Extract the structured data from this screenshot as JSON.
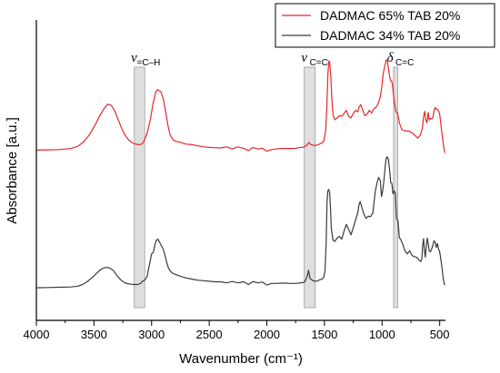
{
  "chart_data": {
    "type": "line",
    "xlabel": "Wavenumber (cm⁻¹)",
    "ylabel": "Absorbance [a.u.]",
    "xlim": [
      4000,
      450
    ],
    "x_reversed": true,
    "ylim": [
      0,
      100
    ],
    "x_ticks": [
      "4000",
      "3500",
      "3000",
      "2500",
      "2000",
      "1500",
      "1000",
      "500"
    ],
    "grid": false,
    "legend_position": "top-right",
    "legend": [
      {
        "label": "DADMAC 65% TAB 20%",
        "color": "#e8262b"
      },
      {
        "label": "DADMAC 34% TAB 20%",
        "color": "#3a3a3a"
      }
    ],
    "bands": [
      {
        "from": 3150,
        "to": 3060,
        "main": "ν",
        "sub": "=C–H"
      },
      {
        "from": 1675,
        "to": 1580,
        "main": "ν",
        "sub": "C=C"
      },
      {
        "from": 900,
        "to": 865,
        "main": "δ",
        "sub": "C=C"
      }
    ],
    "series": [
      {
        "name": "DADMAC 65% TAB 20%",
        "color": "#e8262b",
        "points": [
          [
            4000,
            59
          ],
          [
            3900,
            59.1
          ],
          [
            3800,
            59.2
          ],
          [
            3700,
            59.6
          ],
          [
            3640,
            60.4
          ],
          [
            3590,
            62
          ],
          [
            3540,
            64.6
          ],
          [
            3490,
            68.2
          ],
          [
            3450,
            71.6
          ],
          [
            3410,
            74.4
          ],
          [
            3380,
            75.8
          ],
          [
            3350,
            75.4
          ],
          [
            3320,
            73.4
          ],
          [
            3290,
            70.2
          ],
          [
            3260,
            67
          ],
          [
            3230,
            64.4
          ],
          [
            3200,
            62.8
          ],
          [
            3170,
            61.8
          ],
          [
            3140,
            61.2
          ],
          [
            3110,
            61
          ],
          [
            3085,
            61.2
          ],
          [
            3065,
            62.4
          ],
          [
            3040,
            65
          ],
          [
            3010,
            70.4
          ],
          [
            2985,
            76.6
          ],
          [
            2965,
            80
          ],
          [
            2950,
            81.2
          ],
          [
            2935,
            80.8
          ],
          [
            2920,
            80.4
          ],
          [
            2900,
            78
          ],
          [
            2880,
            73.6
          ],
          [
            2860,
            68.4
          ],
          [
            2840,
            64.6
          ],
          [
            2820,
            63.2
          ],
          [
            2800,
            62.4
          ],
          [
            2750,
            61.8
          ],
          [
            2700,
            61.2
          ],
          [
            2650,
            61
          ],
          [
            2600,
            60.6
          ],
          [
            2550,
            60.2
          ],
          [
            2500,
            60
          ],
          [
            2450,
            59.9
          ],
          [
            2400,
            59.8
          ],
          [
            2350,
            60.2
          ],
          [
            2300,
            59.4
          ],
          [
            2250,
            60.2
          ],
          [
            2200,
            59.6
          ],
          [
            2160,
            58.8
          ],
          [
            2120,
            60
          ],
          [
            2080,
            59.4
          ],
          [
            2040,
            59.7
          ],
          [
            2000,
            58.6
          ],
          [
            1960,
            59.2
          ],
          [
            1920,
            59.4
          ],
          [
            1880,
            59.6
          ],
          [
            1840,
            59.6
          ],
          [
            1800,
            59.6
          ],
          [
            1760,
            59.6
          ],
          [
            1720,
            59.9
          ],
          [
            1680,
            60.1
          ],
          [
            1650,
            60.9
          ],
          [
            1635,
            61.8
          ],
          [
            1620,
            61.1
          ],
          [
            1600,
            60.8
          ],
          [
            1580,
            60.7
          ],
          [
            1560,
            60.9
          ],
          [
            1540,
            61.3
          ],
          [
            1520,
            61.6
          ],
          [
            1505,
            62.5
          ],
          [
            1490,
            66
          ],
          [
            1480,
            74
          ],
          [
            1470,
            87
          ],
          [
            1462,
            91.6
          ],
          [
            1455,
            91.2
          ],
          [
            1445,
            86
          ],
          [
            1435,
            77
          ],
          [
            1425,
            71.8
          ],
          [
            1410,
            70.2
          ],
          [
            1390,
            70.8
          ],
          [
            1370,
            71.6
          ],
          [
            1350,
            71.4
          ],
          [
            1330,
            72.4
          ],
          [
            1310,
            73.6
          ],
          [
            1290,
            71.4
          ],
          [
            1270,
            70.8
          ],
          [
            1250,
            72.4
          ],
          [
            1230,
            73.6
          ],
          [
            1210,
            73
          ],
          [
            1200,
            74.8
          ],
          [
            1185,
            75.6
          ],
          [
            1170,
            74
          ],
          [
            1150,
            71.6
          ],
          [
            1130,
            72.2
          ],
          [
            1110,
            73.6
          ],
          [
            1090,
            72.6
          ],
          [
            1070,
            74.2
          ],
          [
            1050,
            74.8
          ],
          [
            1030,
            76.4
          ],
          [
            1015,
            78.6
          ],
          [
            1000,
            83
          ],
          [
            990,
            87
          ],
          [
            975,
            90
          ],
          [
            965,
            92
          ],
          [
            955,
            91.6
          ],
          [
            945,
            89
          ],
          [
            935,
            86
          ],
          [
            925,
            84.4
          ],
          [
            915,
            84.2
          ],
          [
            905,
            81
          ],
          [
            895,
            77
          ],
          [
            880,
            73.2
          ],
          [
            865,
            72.4
          ],
          [
            850,
            69
          ],
          [
            830,
            66.6
          ],
          [
            810,
            66.2
          ],
          [
            790,
            66
          ],
          [
            770,
            66
          ],
          [
            750,
            65.6
          ],
          [
            730,
            65
          ],
          [
            710,
            64.2
          ],
          [
            690,
            63.4
          ],
          [
            670,
            64.4
          ],
          [
            660,
            65.6
          ],
          [
            650,
            67.2
          ],
          [
            640,
            71.2
          ],
          [
            630,
            73.2
          ],
          [
            620,
            70
          ],
          [
            610,
            69
          ],
          [
            600,
            72.8
          ],
          [
            590,
            70
          ],
          [
            580,
            70.6
          ],
          [
            570,
            70.4
          ],
          [
            560,
            70.8
          ],
          [
            550,
            73.2
          ],
          [
            540,
            74.6
          ],
          [
            530,
            74
          ],
          [
            520,
            74
          ],
          [
            510,
            73.4
          ],
          [
            500,
            72.2
          ],
          [
            490,
            68.6
          ],
          [
            480,
            65
          ],
          [
            470,
            61.6
          ],
          [
            460,
            58.8
          ],
          [
            455,
            58
          ]
        ]
      },
      {
        "name": "DADMAC 34% TAB 20%",
        "color": "#3a3a3a",
        "points": [
          [
            4000,
            8.6
          ],
          [
            3900,
            8.7
          ],
          [
            3800,
            8.8
          ],
          [
            3700,
            8.9
          ],
          [
            3640,
            9.2
          ],
          [
            3600,
            9.8
          ],
          [
            3560,
            10.8
          ],
          [
            3520,
            12.2
          ],
          [
            3480,
            13.8
          ],
          [
            3450,
            15
          ],
          [
            3420,
            15.8
          ],
          [
            3390,
            16.1
          ],
          [
            3360,
            15.8
          ],
          [
            3330,
            14.8
          ],
          [
            3300,
            13
          ],
          [
            3270,
            11.6
          ],
          [
            3240,
            10.6
          ],
          [
            3210,
            10.1
          ],
          [
            3180,
            9.9
          ],
          [
            3150,
            9.8
          ],
          [
            3120,
            9.8
          ],
          [
            3095,
            10.2
          ],
          [
            3080,
            11
          ],
          [
            3065,
            11.2
          ],
          [
            3040,
            12.6
          ],
          [
            3020,
            16.8
          ],
          [
            3000,
            21
          ],
          [
            2985,
            21.6
          ],
          [
            2970,
            24.6
          ],
          [
            2958,
            26
          ],
          [
            2945,
            26.4
          ],
          [
            2930,
            25.2
          ],
          [
            2915,
            24
          ],
          [
            2900,
            22.8
          ],
          [
            2885,
            20.8
          ],
          [
            2870,
            18
          ],
          [
            2855,
            16
          ],
          [
            2840,
            14.8
          ],
          [
            2820,
            14
          ],
          [
            2800,
            13.6
          ],
          [
            2750,
            12.8
          ],
          [
            2700,
            12.2
          ],
          [
            2650,
            11.8
          ],
          [
            2600,
            11.4
          ],
          [
            2550,
            11.2
          ],
          [
            2500,
            11
          ],
          [
            2450,
            10.8
          ],
          [
            2400,
            10.8
          ],
          [
            2350,
            10.4
          ],
          [
            2300,
            10.9
          ],
          [
            2250,
            10.4
          ],
          [
            2200,
            10.8
          ],
          [
            2160,
            9.8
          ],
          [
            2120,
            10.9
          ],
          [
            2080,
            10.4
          ],
          [
            2040,
            10.7
          ],
          [
            2000,
            9.6
          ],
          [
            1960,
            10.2
          ],
          [
            1920,
            10.2
          ],
          [
            1880,
            10.3
          ],
          [
            1840,
            10.3
          ],
          [
            1800,
            10.2
          ],
          [
            1760,
            10.2
          ],
          [
            1720,
            10.3
          ],
          [
            1690,
            10.5
          ],
          [
            1670,
            10.8
          ],
          [
            1650,
            12.8
          ],
          [
            1638,
            15
          ],
          [
            1625,
            12
          ],
          [
            1600,
            11.2
          ],
          [
            1580,
            11
          ],
          [
            1560,
            11.1
          ],
          [
            1540,
            11.6
          ],
          [
            1520,
            11.7
          ],
          [
            1505,
            12.6
          ],
          [
            1495,
            15
          ],
          [
            1485,
            25
          ],
          [
            1478,
            40
          ],
          [
            1470,
            44.2
          ],
          [
            1462,
            44.6
          ],
          [
            1455,
            43.4
          ],
          [
            1448,
            38
          ],
          [
            1440,
            30
          ],
          [
            1425,
            26
          ],
          [
            1410,
            25.6
          ],
          [
            1390,
            26.8
          ],
          [
            1370,
            27.4
          ],
          [
            1350,
            26.4
          ],
          [
            1330,
            29.4
          ],
          [
            1310,
            31.8
          ],
          [
            1290,
            30
          ],
          [
            1270,
            28
          ],
          [
            1250,
            30.6
          ],
          [
            1230,
            33.4
          ],
          [
            1210,
            36.2
          ],
          [
            1200,
            39
          ],
          [
            1190,
            40.2
          ],
          [
            1175,
            38
          ],
          [
            1160,
            35.8
          ],
          [
            1140,
            34
          ],
          [
            1120,
            34.8
          ],
          [
            1100,
            34.6
          ],
          [
            1080,
            36
          ],
          [
            1060,
            43.6
          ],
          [
            1045,
            46.8
          ],
          [
            1030,
            49
          ],
          [
            1015,
            47.8
          ],
          [
            1005,
            42
          ],
          [
            995,
            44
          ],
          [
            985,
            47.4
          ],
          [
            975,
            52
          ],
          [
            965,
            56
          ],
          [
            955,
            56.6
          ],
          [
            945,
            55.4
          ],
          [
            935,
            52
          ],
          [
            925,
            47
          ],
          [
            915,
            46.8
          ],
          [
            905,
            43
          ],
          [
            895,
            44
          ],
          [
            885,
            43.2
          ],
          [
            875,
            34
          ],
          [
            862,
            33.2
          ],
          [
            850,
            27
          ],
          [
            835,
            26
          ],
          [
            820,
            24.4
          ],
          [
            800,
            22
          ],
          [
            780,
            21
          ],
          [
            760,
            22.2
          ],
          [
            740,
            20.4
          ],
          [
            720,
            20
          ],
          [
            700,
            19.8
          ],
          [
            680,
            18.8
          ],
          [
            665,
            18.2
          ],
          [
            655,
            19.2
          ],
          [
            648,
            24
          ],
          [
            640,
            26.6
          ],
          [
            632,
            22
          ],
          [
            625,
            19.8
          ],
          [
            615,
            24.4
          ],
          [
            608,
            26.8
          ],
          [
            600,
            24.8
          ],
          [
            590,
            22
          ],
          [
            580,
            21.8
          ],
          [
            570,
            22.8
          ],
          [
            560,
            24
          ],
          [
            550,
            25.8
          ],
          [
            540,
            25.4
          ],
          [
            530,
            23.4
          ],
          [
            520,
            24.8
          ],
          [
            510,
            22.8
          ],
          [
            500,
            21.8
          ],
          [
            490,
            19
          ],
          [
            480,
            16
          ],
          [
            470,
            12.2
          ],
          [
            460,
            10
          ],
          [
            455,
            9.6
          ]
        ]
      }
    ]
  }
}
